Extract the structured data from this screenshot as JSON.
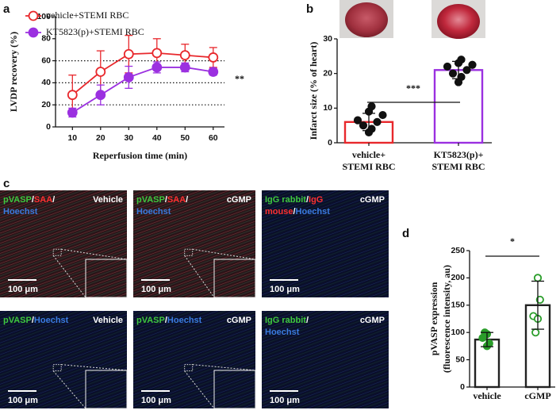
{
  "panel_letters": [
    "a",
    "b",
    "c",
    "d"
  ],
  "chart_data": [
    {
      "type": "line",
      "xlabel": "Reperfusion time (min)",
      "ylabel": "LVDP recovery (%)",
      "x": [
        10,
        20,
        30,
        40,
        50,
        60
      ],
      "xlim": [
        4,
        64
      ],
      "xticks": [
        10,
        20,
        30,
        40,
        50,
        60
      ],
      "ylim": [
        0,
        100
      ],
      "yticks": [
        0,
        20,
        40,
        60,
        80,
        100
      ],
      "reference_lines": [
        20,
        40,
        60
      ],
      "legend": "top-left",
      "annotation": "**",
      "series": [
        {
          "name": "vehicle+STEMI RBC",
          "color": "#e8282c",
          "marker": "open",
          "values": [
            29,
            50,
            66,
            67,
            65,
            63
          ],
          "errors": [
            18,
            19,
            17,
            13,
            10,
            9
          ]
        },
        {
          "name": "KT5823(p)+STEMI RBC",
          "color": "#9b30e0",
          "marker": "filled",
          "values": [
            13,
            29,
            45,
            54,
            54,
            50
          ],
          "errors": [
            4,
            9,
            10,
            5,
            4,
            3
          ]
        }
      ]
    },
    {
      "type": "bar",
      "ylabel": "Infarct size (% of heart)",
      "categories": [
        [
          "vehicle+",
          "STEMI RBC"
        ],
        [
          "KT5823(p)+",
          "STEMI RBC"
        ]
      ],
      "colors": [
        "#e8282c",
        "#9b30e0"
      ],
      "point_color": "#111",
      "point_fill": [
        "filled",
        "filled"
      ],
      "values": [
        6,
        21
      ],
      "errors": [
        2.5,
        2.5
      ],
      "points": [
        [
          3,
          4,
          5,
          6,
          6.5,
          8,
          9,
          10.5
        ],
        [
          17.5,
          19,
          20,
          21,
          22,
          22.5,
          23,
          24
        ]
      ],
      "ylim": [
        0,
        30
      ],
      "yticks": [
        0,
        10,
        20,
        30
      ],
      "annotation": "***"
    },
    {
      "type": "bar",
      "ylabel": [
        "pVASP expression",
        "(fluorescence intensity, au)"
      ],
      "categories": [
        [
          "vehicle"
        ],
        [
          "cGMP"
        ]
      ],
      "colors": [
        "#222",
        "#222"
      ],
      "point_color": "#2a9d2a",
      "point_fill": [
        "filled",
        "open"
      ],
      "values": [
        87,
        150
      ],
      "errors": [
        13,
        44
      ],
      "points": [
        [
          75,
          80,
          90,
          97,
          100
        ],
        [
          200,
          160,
          130,
          125,
          100
        ]
      ],
      "ylim": [
        0,
        250
      ],
      "yticks": [
        0,
        50,
        100,
        150,
        200,
        250
      ],
      "annotation": "*"
    }
  ],
  "micrographs": [
    {
      "label": [
        [
          {
            "text": "pVASP",
            "color": "#3ec83e"
          },
          {
            "text": "/",
            "color": "#ffffff"
          },
          {
            "text": "SAA",
            "color": "#ff3030"
          },
          {
            "text": "/",
            "color": "#ffffff"
          }
        ],
        [
          {
            "text": "Hoechst",
            "color": "#3a7be0"
          }
        ]
      ],
      "condition": "Vehicle",
      "scale": "100 μm"
    },
    {
      "label": [
        [
          {
            "text": "pVASP",
            "color": "#3ec83e"
          },
          {
            "text": "/",
            "color": "#ffffff"
          },
          {
            "text": "SAA",
            "color": "#ff3030"
          },
          {
            "text": "/",
            "color": "#ffffff"
          }
        ],
        [
          {
            "text": "Hoechst",
            "color": "#3a7be0"
          }
        ]
      ],
      "condition": "cGMP",
      "scale": "100 μm"
    },
    {
      "label": [
        [
          {
            "text": "IgG rabbit",
            "color": "#3ec83e"
          },
          {
            "text": "/",
            "color": "#ffffff"
          },
          {
            "text": "IgG",
            "color": "#ff3030"
          }
        ],
        [
          {
            "text": "mouse",
            "color": "#ff3030"
          },
          {
            "text": "/",
            "color": "#ffffff"
          },
          {
            "text": "Hoechst",
            "color": "#3a7be0"
          }
        ]
      ],
      "condition": "cGMP",
      "scale": "100 μm"
    },
    {
      "label": [
        [
          {
            "text": "pVASP",
            "color": "#3ec83e"
          },
          {
            "text": "/",
            "color": "#ffffff"
          },
          {
            "text": "Hoechst",
            "color": "#3a7be0"
          }
        ]
      ],
      "condition": "Vehicle",
      "scale": "100 μm"
    },
    {
      "label": [
        [
          {
            "text": "pVASP",
            "color": "#3ec83e"
          },
          {
            "text": "/",
            "color": "#ffffff"
          },
          {
            "text": "Hoechst",
            "color": "#3a7be0"
          }
        ]
      ],
      "condition": "cGMP",
      "scale": "100 μm"
    },
    {
      "label": [
        [
          {
            "text": "IgG rabbit",
            "color": "#3ec83e"
          },
          {
            "text": "/",
            "color": "#ffffff"
          }
        ],
        [
          {
            "text": "Hoechst",
            "color": "#3a7be0"
          }
        ]
      ],
      "condition": "cGMP",
      "scale": "100 μm"
    }
  ]
}
